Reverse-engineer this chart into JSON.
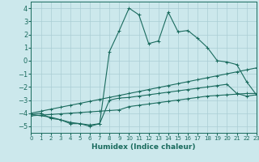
{
  "xlabel": "Humidex (Indice chaleur)",
  "xlim": [
    0,
    23
  ],
  "ylim": [
    -5.5,
    4.5
  ],
  "yticks": [
    -5,
    -4,
    -3,
    -2,
    -1,
    0,
    1,
    2,
    3,
    4
  ],
  "xticks": [
    0,
    1,
    2,
    3,
    4,
    5,
    6,
    7,
    8,
    9,
    10,
    11,
    12,
    13,
    14,
    15,
    16,
    17,
    18,
    19,
    20,
    21,
    22,
    23
  ],
  "bg_color": "#cce8ec",
  "line_color": "#1a6b5e",
  "grid_color": "#aacdd4",
  "series": [
    {
      "x": [
        0,
        2,
        3,
        4,
        5,
        6,
        7,
        8,
        9,
        10,
        11,
        12,
        13,
        14,
        15,
        16,
        17,
        18,
        19,
        20,
        21,
        22,
        23
      ],
      "y": [
        -4.1,
        -4.3,
        -4.5,
        -4.7,
        -4.8,
        -4.9,
        -4.8,
        0.7,
        2.3,
        4.0,
        3.5,
        1.3,
        1.5,
        3.7,
        2.2,
        2.3,
        1.7,
        1.0,
        0.0,
        -0.1,
        -0.3,
        -1.6,
        -2.6
      ]
    },
    {
      "x": [
        0,
        1,
        2,
        3,
        4,
        5,
        6,
        7,
        8,
        9,
        10,
        11,
        12,
        13,
        14,
        15,
        16,
        17,
        18,
        19,
        20,
        21,
        22,
        23
      ],
      "y": [
        -4.0,
        -3.85,
        -3.7,
        -3.55,
        -3.4,
        -3.25,
        -3.1,
        -2.95,
        -2.8,
        -2.65,
        -2.5,
        -2.35,
        -2.2,
        -2.05,
        -1.9,
        -1.75,
        -1.6,
        -1.45,
        -1.3,
        -1.15,
        -1.0,
        -0.85,
        -0.7,
        -0.55
      ]
    },
    {
      "x": [
        0,
        1,
        2,
        3,
        4,
        5,
        6,
        7,
        8,
        9,
        10,
        11,
        12,
        13,
        14,
        15,
        16,
        17,
        18,
        19,
        20,
        21,
        22,
        23
      ],
      "y": [
        -4.2,
        -4.15,
        -4.1,
        -4.05,
        -4.0,
        -3.95,
        -3.9,
        -3.85,
        -3.8,
        -3.75,
        -3.5,
        -3.4,
        -3.3,
        -3.2,
        -3.1,
        -3.0,
        -2.9,
        -2.8,
        -2.7,
        -2.65,
        -2.6,
        -2.55,
        -2.5,
        -2.5
      ]
    },
    {
      "x": [
        0,
        1,
        2,
        3,
        4,
        5,
        6,
        7,
        8,
        9,
        10,
        11,
        12,
        13,
        14,
        15,
        16,
        17,
        18,
        19,
        20,
        21,
        22,
        23
      ],
      "y": [
        -4.1,
        -4.0,
        -4.4,
        -4.5,
        -4.8,
        -4.8,
        -5.0,
        -4.8,
        -3.0,
        -2.85,
        -2.8,
        -2.7,
        -2.6,
        -2.5,
        -2.4,
        -2.3,
        -2.2,
        -2.1,
        -2.0,
        -1.9,
        -1.8,
        -2.5,
        -2.7,
        -2.6
      ]
    }
  ]
}
